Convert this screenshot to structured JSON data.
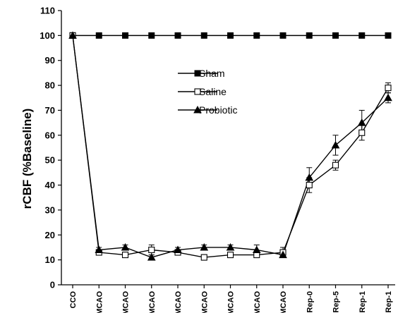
{
  "chart_data": {
    "type": "line",
    "title": "",
    "xlabel": "",
    "ylabel": "rCBF (%Baseline)",
    "ylim": [
      0,
      110
    ],
    "yticks": [
      0,
      10,
      20,
      30,
      40,
      50,
      60,
      70,
      80,
      90,
      100,
      110
    ],
    "categories": [
      "CCO",
      "MCAO",
      "MCAO",
      "MCAO",
      "MCAO",
      "MCAO",
      "MCAO",
      "MCAO",
      "MCAO",
      "Rep-0",
      "Rep-5",
      "Rep-1",
      "Rep-1"
    ],
    "legend_position": "center",
    "grid": false,
    "series": [
      {
        "name": "Sham",
        "marker": "filled-square",
        "color": "#000000",
        "values": [
          100,
          100,
          100,
          100,
          100,
          100,
          100,
          100,
          100,
          100,
          100,
          100,
          100
        ],
        "errors": [
          0,
          0,
          0,
          0,
          0,
          0,
          0,
          0,
          0,
          0,
          0,
          0,
          0
        ]
      },
      {
        "name": "Saline",
        "marker": "open-square",
        "color": "#000000",
        "values": [
          100,
          13,
          12,
          14,
          13,
          11,
          12,
          12,
          13,
          40,
          48,
          61,
          79
        ],
        "errors": [
          0,
          1,
          1,
          2,
          1,
          1,
          1,
          1,
          2,
          3,
          2,
          3,
          2
        ]
      },
      {
        "name": "Probiotic",
        "marker": "filled-triangle",
        "color": "#000000",
        "values": [
          100,
          14,
          15,
          11,
          14,
          15,
          15,
          14,
          12,
          43,
          56,
          65,
          75
        ],
        "errors": [
          0,
          1,
          1,
          1,
          1,
          1,
          1,
          2,
          1,
          4,
          4,
          5,
          2
        ]
      }
    ]
  }
}
